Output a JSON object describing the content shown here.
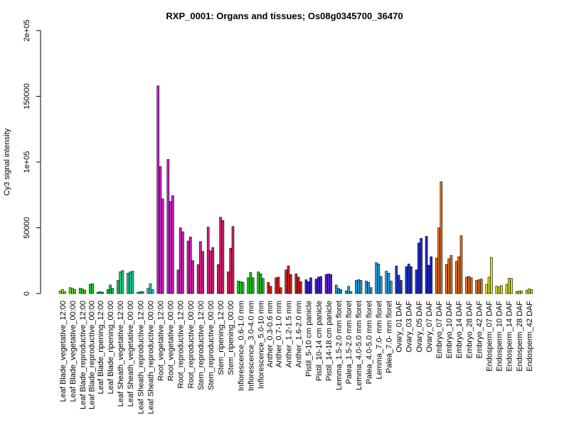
{
  "chart_data": {
    "type": "bar",
    "title": "RXP_0001: Organs and tissues; Os08g0345700_36470",
    "xlabel": "",
    "ylabel": "Cy3 signal intensity",
    "ylim": [
      0,
      200000
    ],
    "yticks": [
      {
        "value": 0,
        "label": "0"
      },
      {
        "value": 50000,
        "label": "50000"
      },
      {
        "value": 100000,
        "label": "1e+05"
      },
      {
        "value": 150000,
        "label": "150000"
      },
      {
        "value": 200000,
        "label": "2e+05"
      }
    ],
    "grid": false,
    "legend": "none",
    "groups": [
      {
        "label": "Leaf Blade_vegetative_12:00",
        "color": "#90EE20",
        "values": [
          2000,
          3000,
          1500
        ]
      },
      {
        "label": "Leaf Blade_vegetative_00:00",
        "color": "#70E020",
        "values": [
          4500,
          4000,
          3000
        ]
      },
      {
        "label": "Leaf Blade_reproductive_12:00",
        "color": "#40D820",
        "values": [
          4000,
          3500,
          2500
        ]
      },
      {
        "label": "Leaf Blade_reproductive_00:00",
        "color": "#20D020",
        "values": [
          7000,
          7500
        ]
      },
      {
        "label": "Leaf Blade_ripening_12:00",
        "color": "#20C840",
        "values": [
          1000,
          1500,
          1000
        ]
      },
      {
        "label": "Leaf Blade_ripening_00:00",
        "color": "#20C850",
        "values": [
          3000,
          6500,
          4000
        ]
      },
      {
        "label": "Leaf Sheath_vegetative_12:00",
        "color": "#20D080",
        "values": [
          10000,
          16500,
          17500
        ]
      },
      {
        "label": "Leaf Sheath_vegetative_00:00",
        "color": "#20D0A0",
        "values": [
          15500,
          16500,
          17000
        ]
      },
      {
        "label": "Leaf Sheath_reproductive_12:00",
        "color": "#20D0B0",
        "values": [
          1000,
          1500,
          1500
        ]
      },
      {
        "label": "Leaf Sheath_reproductive_00:00",
        "color": "#20D0C0",
        "values": [
          4000,
          7500,
          3000
        ]
      },
      {
        "label": "Root_vegetative_12:00",
        "color": "#D020D0",
        "values": [
          158000,
          96500,
          72000
        ]
      },
      {
        "label": "Root_vegetative_00:00",
        "color": "#D020C8",
        "values": [
          102000,
          70000,
          74500
        ]
      },
      {
        "label": "Root_reproductive_12:00",
        "color": "#D020B8",
        "values": [
          18000,
          50000,
          47000
        ]
      },
      {
        "label": "Root_reproductive_00:00",
        "color": "#D020A8",
        "values": [
          40000,
          43000,
          25000
        ]
      },
      {
        "label": "Stem_reproductive_12:00",
        "color": "#D82090",
        "values": [
          22000,
          39500,
          32000
        ]
      },
      {
        "label": "Stem_reproductive_00:00",
        "color": "#D82080",
        "values": [
          50500,
          32500,
          35000
        ]
      },
      {
        "label": "Stem_ripening_12:00",
        "color": "#D82070",
        "values": [
          22000,
          58000,
          55500
        ]
      },
      {
        "label": "Stem_ripening_00:00",
        "color": "#D82060",
        "values": [
          16500,
          34500,
          51000
        ]
      },
      {
        "label": "Inflorescence_0.6-1.0 mm",
        "color": "#20D020",
        "values": [
          9500,
          9000,
          8500
        ]
      },
      {
        "label": "Inflorescence_3.0-4.0 mm",
        "color": "#20C820",
        "values": [
          12000,
          16000,
          12000
        ]
      },
      {
        "label": "Inflorescence_5.0-10 mm",
        "color": "#20C020",
        "values": [
          16500,
          15000,
          11500
        ]
      },
      {
        "label": "Anther_0.3-0.6 mm",
        "color": "#E02020",
        "values": [
          8500,
          5500
        ]
      },
      {
        "label": "Anther_0.7-1.0 mm",
        "color": "#E02020",
        "values": [
          12000,
          12500,
          4500
        ]
      },
      {
        "label": "Anther_1.2-1.5 mm",
        "color": "#D82020",
        "values": [
          18000,
          21000,
          14500
        ]
      },
      {
        "label": "Anther_1.6-2.0 mm",
        "color": "#D02020",
        "values": [
          15000,
          12500,
          9000
        ]
      },
      {
        "label": "Pistil_5-10 cm panicle",
        "color": "#4020D0",
        "values": [
          10500,
          9000,
          12000
        ]
      },
      {
        "label": "Pistil_10-14 cm panicle",
        "color": "#5020D0",
        "values": [
          11000,
          12500,
          13000
        ]
      },
      {
        "label": "Pistil_14-18 cm panicle",
        "color": "#6020D0",
        "values": [
          14500,
          15000,
          14500
        ]
      },
      {
        "label": "Lemma_1.5-2.0 mm floret",
        "color": "#20A0D0",
        "values": [
          6500,
          4000,
          3000
        ]
      },
      {
        "label": "Palea_1.5-2.0 mm floret",
        "color": "#20A8D0",
        "values": [
          2000,
          5500,
          1500
        ]
      },
      {
        "label": "Lemma_4.0-5.0 mm floret",
        "color": "#20A0D0",
        "values": [
          10000,
          10500,
          10000
        ]
      },
      {
        "label": "Palea_4.0-5.0 mm floret",
        "color": "#20A0D8",
        "values": [
          9500,
          8500,
          4500
        ]
      },
      {
        "label": "Lemma_7.0- mm floret",
        "color": "#20A0E0",
        "values": [
          23500,
          22500,
          13000
        ]
      },
      {
        "label": "Palea_7.0- mm floret",
        "color": "#20A0E0",
        "values": [
          17000,
          15500,
          9500
        ]
      },
      {
        "label": "Ovary_01 DAF",
        "color": "#2040D0",
        "values": [
          21000,
          14000,
          10000
        ]
      },
      {
        "label": "Ovary_03 DAF",
        "color": "#2038D0",
        "values": [
          20500,
          22500,
          20500
        ]
      },
      {
        "label": "Ovary_05 DAF",
        "color": "#2030D0",
        "values": [
          18000,
          38500,
          42000
        ]
      },
      {
        "label": "Ovary_07 DAF",
        "color": "#2028D0",
        "values": [
          43500,
          21500,
          28000
        ]
      },
      {
        "label": "Embryo_07 DAF",
        "color": "#E07020",
        "values": [
          27000,
          50000,
          85000
        ]
      },
      {
        "label": "Embryo_10 DAF",
        "color": "#E07020",
        "values": [
          22000,
          26500,
          29000
        ]
      },
      {
        "label": "Embryo_14 DAF",
        "color": "#E07020",
        "values": [
          24500,
          28000,
          44000
        ]
      },
      {
        "label": "Embryo_28 DAF",
        "color": "#E07020",
        "values": [
          12500,
          13000,
          12000
        ]
      },
      {
        "label": "Embryo_42 DAF",
        "color": "#E07020",
        "values": [
          10000,
          10500,
          11000
        ]
      },
      {
        "label": "Endosperm_07 DAF",
        "color": "#D8E020",
        "values": [
          7000,
          12500,
          27500
        ]
      },
      {
        "label": "Endosperm_10 DAF",
        "color": "#D8E020",
        "values": [
          5500,
          5000,
          6000
        ]
      },
      {
        "label": "Endosperm_14 DAF",
        "color": "#D8E020",
        "values": [
          7000,
          11500,
          11500
        ]
      },
      {
        "label": "Endosperm_28 DAF",
        "color": "#D8E020",
        "values": [
          1500,
          2000,
          2000
        ]
      },
      {
        "label": "Endosperm_42 DAF",
        "color": "#D8E020",
        "values": [
          2500,
          3500,
          3000
        ]
      }
    ]
  }
}
